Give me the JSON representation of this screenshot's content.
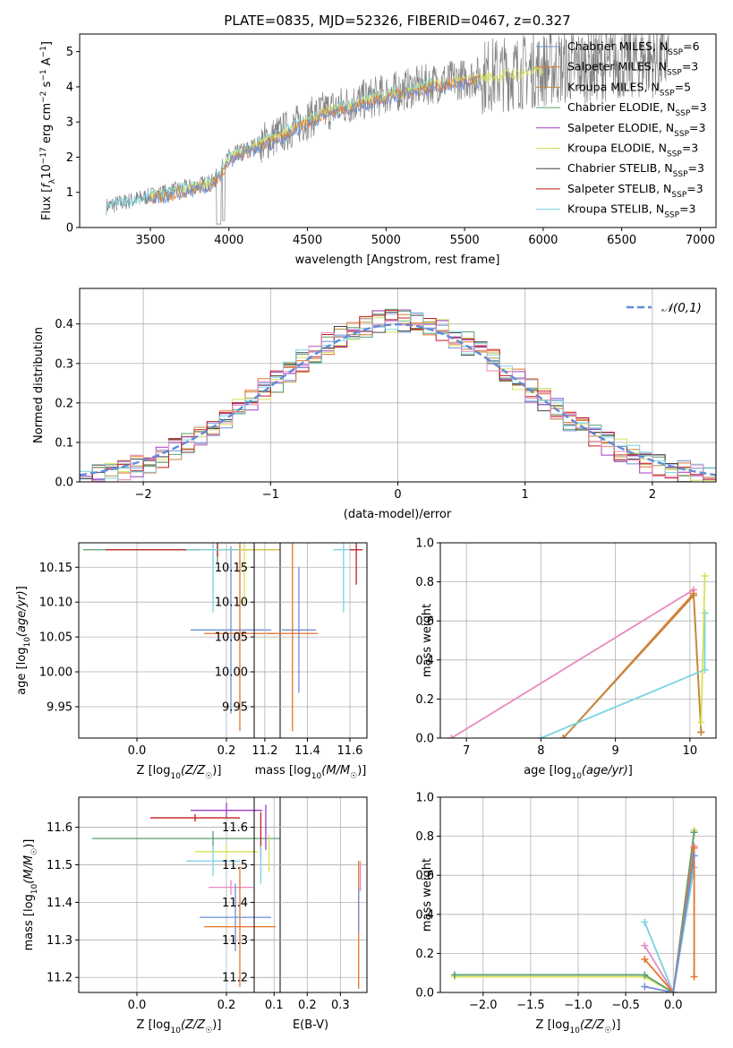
{
  "colors": {
    "Chabrier MILES": "#6f8fd6",
    "Salpeter MILES": "#e8722a",
    "Kroupa MILES": "#c08a40",
    "Chabrier ELODIE": "#5a9e6f",
    "Salpeter ELODIE": "#9b3fc4",
    "Kroupa ELODIE": "#d8e05a",
    "Chabrier STELIB": "#444444",
    "Salpeter STELIB": "#c41e1e",
    "Kroupa STELIB": "#79d3e0",
    "pink": "#e88ac0",
    "grid": "#b0b0b0"
  },
  "chart_data": [
    {
      "id": "spectrum",
      "type": "line",
      "title": "PLATE=0835, MJD=52326, FIBERID=0467, z=0.327",
      "xlabel": "wavelength [Angstrom, rest frame]",
      "ylabel": "Flux [f_λ 10^-17 erg cm^-2 s^-1 A^-1]",
      "xlim": [
        3050,
        7100
      ],
      "ylim": [
        0,
        5.5
      ],
      "xticks": [
        3500,
        4000,
        4500,
        5000,
        5500,
        6000,
        6500,
        7000
      ],
      "yticks": [
        0,
        1,
        2,
        3,
        4,
        5
      ],
      "grid": false,
      "legend_position": "bottom-right",
      "observed_flux_trend": [
        [
          3220,
          0.6
        ],
        [
          3500,
          0.9
        ],
        [
          3900,
          1.3
        ],
        [
          4000,
          2.0
        ],
        [
          4300,
          2.6
        ],
        [
          4600,
          3.3
        ],
        [
          5000,
          3.8
        ],
        [
          5300,
          4.1
        ],
        [
          5600,
          4.3
        ],
        [
          6000,
          4.5
        ],
        [
          6500,
          4.7
        ],
        [
          6800,
          4.8
        ]
      ],
      "series": [
        {
          "name": "Chabrier MILES, N_SSP=6"
        },
        {
          "name": "Salpeter MILES, N_SSP=3"
        },
        {
          "name": "Kroupa MILES, N_SSP=5"
        },
        {
          "name": "Chabrier ELODIE, N_SSP=3"
        },
        {
          "name": "Salpeter ELODIE, N_SSP=3"
        },
        {
          "name": "Kroupa ELODIE, N_SSP=3"
        },
        {
          "name": "Chabrier STELIB, N_SSP=3"
        },
        {
          "name": "Salpeter STELIB, N_SSP=3"
        },
        {
          "name": "Kroupa STELIB, N_SSP=3"
        }
      ]
    },
    {
      "id": "residuals",
      "type": "line",
      "xlabel": "(data-model)/error",
      "ylabel": "Normed distribution",
      "xlim": [
        -2.5,
        2.5
      ],
      "ylim": [
        0,
        0.49
      ],
      "xticks": [
        -2,
        -1,
        0,
        1,
        2
      ],
      "yticks": [
        0.0,
        0.1,
        0.2,
        0.3,
        0.4
      ],
      "grid": true,
      "legend_position": "top-right",
      "reference_curve": {
        "name": "𝒩(0,1)",
        "mu": 0,
        "sigma": 1
      },
      "histogram_bin_width": 0.1
    },
    {
      "id": "age_vs_Z",
      "type": "scatter",
      "xlabel": "Z [log10(Z/Z☉)]",
      "ylabel": "age [log10(age/yr)]",
      "xlim": [
        -0.13,
        0.32
      ],
      "ylim": [
        9.905,
        10.185
      ],
      "xticks": [
        0.0,
        0.2
      ],
      "yticks": [
        9.95,
        10.0,
        10.05,
        10.1,
        10.15
      ],
      "grid": true,
      "points": [
        {
          "series": "Chabrier MILES",
          "x": 0.21,
          "y": 10.06,
          "xerr": 0.09,
          "yerr": 0.12
        },
        {
          "series": "Salpeter MILES",
          "x": 0.23,
          "y": 10.055,
          "xerr": 0.08,
          "yerr": 0.14
        },
        {
          "series": "Chabrier ELODIE",
          "x": 0.18,
          "y": 10.175,
          "xerr": 0.3,
          "yerr": 0.02
        },
        {
          "series": "Salpeter STELIB",
          "x": 0.18,
          "y": 10.175,
          "xerr": 0.25,
          "yerr": 0.01
        },
        {
          "series": "Kroupa ELODIE",
          "x": 0.24,
          "y": 10.175,
          "xerr": 0.1,
          "yerr": 0.08
        },
        {
          "series": "Kroupa STELIB",
          "x": 0.17,
          "y": 10.175,
          "xerr": 0.06,
          "yerr": 0.09
        }
      ]
    },
    {
      "id": "age_vs_mass",
      "type": "scatter",
      "xlabel": "mass [log10(M/M☉)]",
      "ylabel": "",
      "xlim": [
        11.15,
        11.68
      ],
      "ylim": [
        9.905,
        10.185
      ],
      "xticks": [
        11.2,
        11.4,
        11.6
      ],
      "yticks": [
        9.95,
        10.0,
        10.05,
        10.1,
        10.15
      ],
      "grid": true,
      "points": [
        {
          "series": "Chabrier MILES",
          "x": 11.36,
          "y": 10.06,
          "xerr": 0.08,
          "yerr": 0.09
        },
        {
          "series": "Salpeter MILES",
          "x": 11.33,
          "y": 10.055,
          "xerr": 0.12,
          "yerr": 0.14
        },
        {
          "series": "Kroupa STELIB",
          "x": 11.57,
          "y": 10.175,
          "xerr": 0.05,
          "yerr": 0.09
        },
        {
          "series": "Salpeter STELIB",
          "x": 11.63,
          "y": 10.175,
          "xerr": 0.03,
          "yerr": 0.05
        }
      ]
    },
    {
      "id": "weight_vs_age",
      "type": "line",
      "xlabel": "age [log10(age/yr)]",
      "ylabel": "mass weight",
      "xlim": [
        6.65,
        10.35
      ],
      "ylim": [
        0,
        1.0
      ],
      "xticks": [
        7,
        8,
        9,
        10
      ],
      "yticks": [
        0.0,
        0.2,
        0.4,
        0.6,
        0.8,
        1.0
      ],
      "grid": true,
      "series": [
        {
          "series": "pink",
          "x": [
            6.8,
            10.05
          ],
          "y": [
            0.0,
            0.76
          ]
        },
        {
          "series": "Salpeter MILES",
          "x": [
            8.3,
            10.05,
            10.15
          ],
          "y": [
            0.0,
            0.74,
            0.03
          ]
        },
        {
          "series": "Kroupa MILES",
          "x": [
            8.3,
            10.05,
            10.15
          ],
          "y": [
            0.0,
            0.73,
            0.03
          ]
        },
        {
          "series": "Kroupa STELIB",
          "x": [
            8.0,
            10.2,
            10.2
          ],
          "y": [
            0.0,
            0.35,
            0.64
          ]
        },
        {
          "series": "Kroupa ELODIE",
          "x": [
            10.15,
            10.2
          ],
          "y": [
            0.08,
            0.83
          ]
        }
      ]
    },
    {
      "id": "mass_vs_Z",
      "type": "scatter",
      "xlabel": "Z [log10(Z/Z☉)]",
      "ylabel": "mass [log10(M/M☉)]",
      "xlim": [
        -0.13,
        0.32
      ],
      "ylim": [
        11.16,
        11.68
      ],
      "xticks": [
        0.0,
        0.2
      ],
      "yticks": [
        11.2,
        11.3,
        11.4,
        11.5,
        11.6
      ],
      "grid": true,
      "points": [
        {
          "series": "Salpeter ELODIE",
          "x": 0.2,
          "y": 11.645,
          "xerr": 0.08,
          "yerr": 0.02
        },
        {
          "series": "Salpeter STELIB",
          "x": 0.13,
          "y": 11.625,
          "xerr": 0.1,
          "yerr": 0.01
        },
        {
          "series": "Chabrier ELODIE",
          "x": 0.17,
          "y": 11.57,
          "xerr": 0.27,
          "yerr": 0.02
        },
        {
          "series": "Kroupa ELODIE",
          "x": 0.2,
          "y": 11.535,
          "xerr": 0.07,
          "yerr": 0.02
        },
        {
          "series": "Kroupa STELIB",
          "x": 0.17,
          "y": 11.51,
          "xerr": 0.06,
          "yerr": 0.04
        },
        {
          "series": "pink",
          "x": 0.21,
          "y": 11.44,
          "xerr": 0.05,
          "yerr": 0.02
        },
        {
          "series": "Chabrier MILES",
          "x": 0.22,
          "y": 11.36,
          "xerr": 0.08,
          "yerr": 0.09
        },
        {
          "series": "Salpeter MILES",
          "x": 0.23,
          "y": 11.335,
          "xerr": 0.08,
          "yerr": 0.16
        }
      ]
    },
    {
      "id": "mass_vs_ebv",
      "type": "scatter",
      "xlabel": "E(B-V)",
      "ylabel": "",
      "xlim": [
        0.04,
        0.38
      ],
      "ylim": [
        11.16,
        11.68
      ],
      "xticks": [
        0.1,
        0.2,
        0.3
      ],
      "yticks": [
        11.2,
        11.3,
        11.4,
        11.5,
        11.6
      ],
      "grid": true,
      "points": [
        {
          "series": "Salpeter STELIB",
          "x": 0.06,
          "y": 11.58,
          "yerr": 0.06
        },
        {
          "series": "Kroupa STELIB",
          "x": 0.06,
          "y": 11.5,
          "yerr": 0.05
        },
        {
          "series": "Salpeter ELODIE",
          "x": 0.075,
          "y": 11.6,
          "yerr": 0.06
        },
        {
          "series": "Kroupa ELODIE",
          "x": 0.085,
          "y": 11.53,
          "yerr": 0.05
        },
        {
          "series": "Salpeter MILES",
          "x": 0.355,
          "y": 11.34,
          "yerr": 0.17
        },
        {
          "series": "Chabrier MILES",
          "x": 0.355,
          "y": 11.38,
          "yerr": 0.06
        },
        {
          "series": "pink",
          "x": 0.36,
          "y": 11.47,
          "yerr": 0.04
        }
      ]
    },
    {
      "id": "weight_vs_Z",
      "type": "line",
      "xlabel": "Z [log10(Z/Z☉)]",
      "ylabel": "mass weight",
      "xlim": [
        -2.45,
        0.45
      ],
      "ylim": [
        0,
        1.0
      ],
      "xticks": [
        -2.0,
        -1.5,
        -1.0,
        -0.5,
        0.0
      ],
      "yticks": [
        0.0,
        0.2,
        0.4,
        0.6,
        0.8,
        1.0
      ],
      "grid": true,
      "series": [
        {
          "series": "Kroupa ELODIE",
          "x": [
            -2.3,
            -0.3,
            0.0,
            0.22
          ],
          "y": [
            0.08,
            0.08,
            0.0,
            0.83
          ]
        },
        {
          "series": "Chabrier ELODIE",
          "x": [
            -2.3,
            -0.3,
            0.0,
            0.22
          ],
          "y": [
            0.09,
            0.09,
            0.0,
            0.82
          ]
        },
        {
          "series": "Kroupa STELIB",
          "x": [
            -0.3,
            0.0,
            0.22
          ],
          "y": [
            0.36,
            0.0,
            0.64
          ]
        },
        {
          "series": "pink",
          "x": [
            -0.3,
            0.0,
            0.22
          ],
          "y": [
            0.24,
            0.0,
            0.75
          ]
        },
        {
          "series": "Salpeter MILES",
          "x": [
            -0.3,
            0.0,
            0.22,
            0.22
          ],
          "y": [
            0.17,
            0.0,
            0.74,
            0.08
          ]
        },
        {
          "series": "Chabrier MILES",
          "x": [
            -0.3,
            0.0,
            0.22
          ],
          "y": [
            0.03,
            0.0,
            0.7
          ]
        }
      ]
    }
  ]
}
